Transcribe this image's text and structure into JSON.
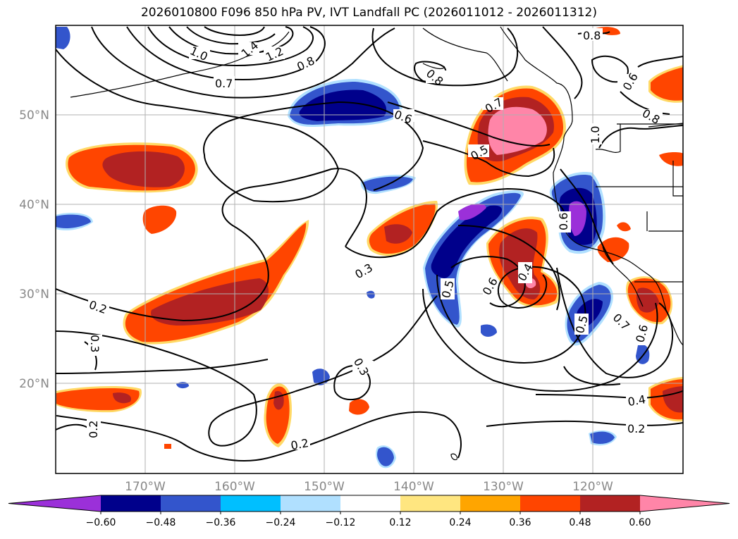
{
  "title": "2026010800 F096 850 hPa PV, IVT Landfall PC (2026011012 - 2026011312)",
  "lat_labels": [
    "50°N",
    "40°N",
    "30°N",
    "20°N"
  ],
  "lon_labels": [
    "170°W",
    "160°W",
    "150°W",
    "140°W",
    "130°W",
    "120°W"
  ],
  "contour_labels": [
    "1.0",
    "1.2",
    "0.8",
    "0.7",
    "1.4",
    "0.8",
    "0.6",
    "0.8",
    "0.6",
    "0.8",
    "0.5",
    "0.7",
    "1.0",
    "0.6",
    "0.3",
    "0.2",
    "0.3",
    "0.5",
    "0.6",
    "0.4",
    "0.5",
    "0.7",
    "0.6",
    "0.3",
    "0.4",
    "0.2",
    "0.2",
    "0.2"
  ],
  "colorbar": {
    "colors": [
      "#9b30d9",
      "#00008b",
      "#3355cc",
      "#00bfff",
      "#b0e0ff",
      "#ffffff",
      "#ffe680",
      "#ffa500",
      "#ff4500",
      "#b22222",
      "#ff85a8"
    ],
    "tick_labels": [
      "−0.60",
      "−0.48",
      "−0.36",
      "−0.24",
      "−0.12",
      "0.12",
      "0.24",
      "0.36",
      "0.48",
      "0.60"
    ]
  }
}
